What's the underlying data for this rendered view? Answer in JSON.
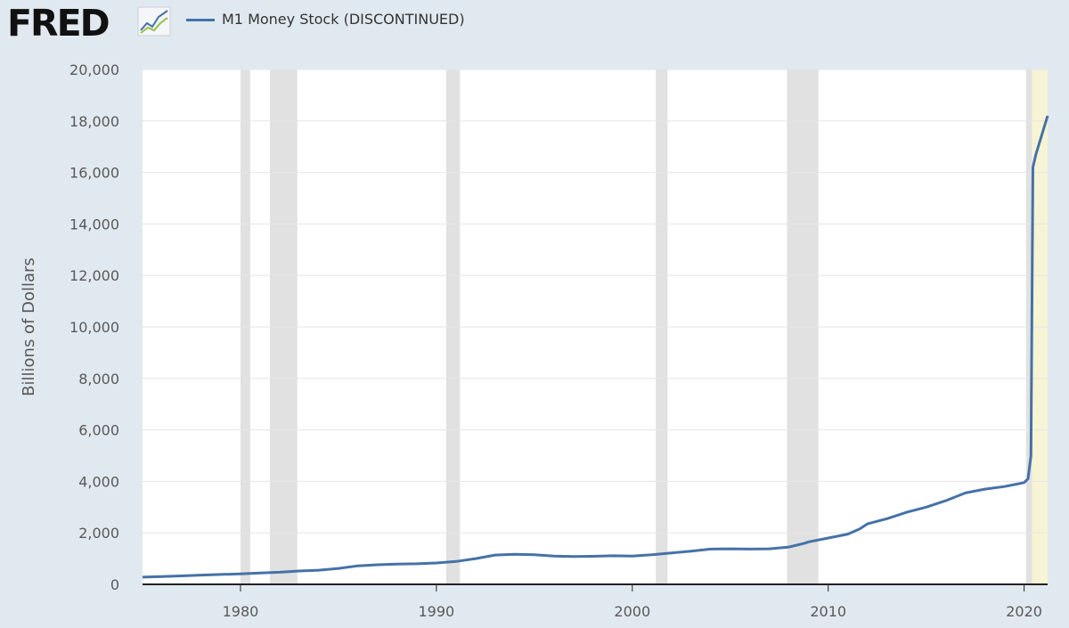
{
  "header": {
    "logo": "FRED",
    "logo_icon": "line-chart-icon"
  },
  "colors": {
    "series": "#4572a7",
    "recession": "#e1e1e1",
    "discontinued": "#f6f4d4",
    "gridline": "#e6e6e6",
    "page_background": "#e1e9f0"
  },
  "chart_data": {
    "type": "line",
    "title": "",
    "ylabel": "Billions of Dollars",
    "xlabel": "",
    "xlim": [
      1975.0,
      2021.2
    ],
    "ylim": [
      0,
      20000
    ],
    "x_ticks": [
      1980,
      1990,
      2000,
      2010,
      2020
    ],
    "x_tick_labels": [
      "1980",
      "1990",
      "2000",
      "2010",
      "2020"
    ],
    "y_ticks": [
      0,
      2000,
      4000,
      6000,
      8000,
      10000,
      12000,
      14000,
      16000,
      18000,
      20000
    ],
    "y_tick_labels": [
      "0",
      "2,000",
      "4,000",
      "6,000",
      "8,000",
      "10,000",
      "12,000",
      "14,000",
      "16,000",
      "18,000",
      "20,000"
    ],
    "grid": true,
    "legend_position": "top-left",
    "recessions": [
      [
        1980.0,
        1980.5
      ],
      [
        1981.5,
        1982.9
      ],
      [
        1990.5,
        1991.2
      ],
      [
        2001.2,
        2001.8
      ],
      [
        2007.9,
        2009.5
      ],
      [
        2020.1,
        2020.4
      ]
    ],
    "shaded_regions": [
      [
        2020.1,
        2021.2
      ]
    ],
    "series": [
      {
        "name": "M1 Money Stock (DISCONTINUED)",
        "x": [
          1975.0,
          1976.0,
          1977.0,
          1978.0,
          1979.0,
          1980.0,
          1981.0,
          1982.0,
          1983.0,
          1984.0,
          1985.0,
          1986.0,
          1987.0,
          1988.0,
          1989.0,
          1990.0,
          1991.0,
          1992.0,
          1993.0,
          1994.0,
          1995.0,
          1996.0,
          1997.0,
          1998.0,
          1999.0,
          2000.0,
          2001.0,
          2002.0,
          2003.0,
          2004.0,
          2005.0,
          2006.0,
          2007.0,
          2008.0,
          2008.8,
          2009.0,
          2010.0,
          2011.0,
          2011.6,
          2012.0,
          2013.0,
          2014.0,
          2015.0,
          2016.0,
          2017.0,
          2018.0,
          2019.0,
          2020.0,
          2020.2,
          2020.35,
          2020.45,
          2020.6,
          2021.0,
          2021.2
        ],
        "y": [
          280,
          305,
          330,
          360,
          385,
          410,
          440,
          470,
          520,
          550,
          620,
          720,
          760,
          790,
          800,
          830,
          890,
          1000,
          1140,
          1170,
          1150,
          1100,
          1080,
          1090,
          1110,
          1100,
          1150,
          1220,
          1290,
          1370,
          1380,
          1370,
          1380,
          1450,
          1600,
          1650,
          1800,
          1950,
          2150,
          2350,
          2550,
          2800,
          3000,
          3250,
          3550,
          3700,
          3800,
          3950,
          4100,
          5000,
          16200,
          16700,
          17700,
          18200
        ]
      }
    ]
  }
}
